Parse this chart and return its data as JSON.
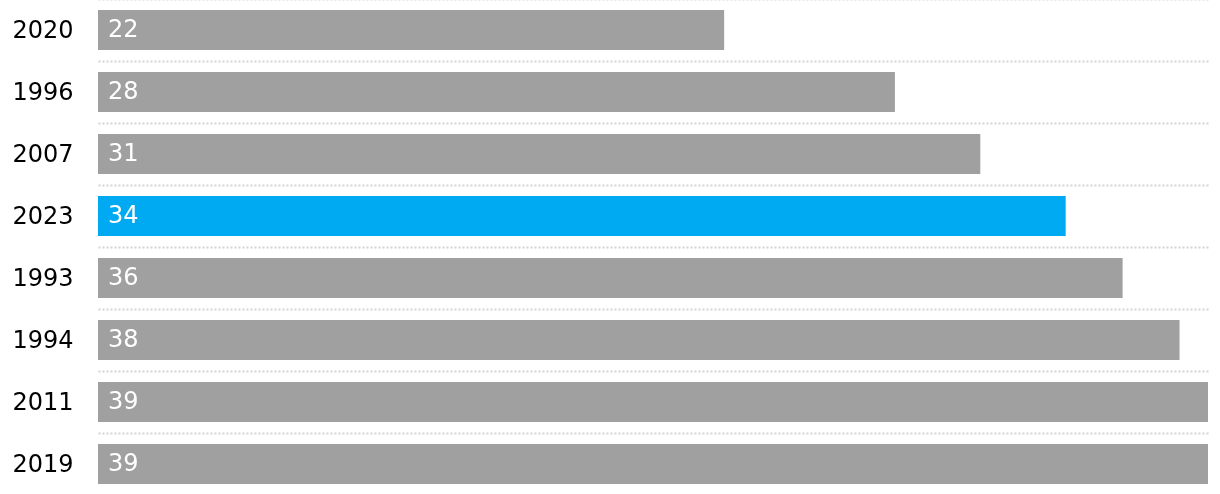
{
  "chart_data": {
    "type": "bar",
    "orientation": "horizontal",
    "categories": [
      "2020",
      "1996",
      "2007",
      "2023",
      "1993",
      "1994",
      "2011",
      "2019"
    ],
    "values": [
      22,
      28,
      31,
      34,
      36,
      38,
      39,
      39
    ],
    "colors": [
      "#a0a0a0",
      "#a0a0a0",
      "#a0a0a0",
      "#00aaf2",
      "#a0a0a0",
      "#a0a0a0",
      "#a0a0a0",
      "#a0a0a0"
    ],
    "xlim": [
      0,
      39
    ],
    "tick_labels": "y",
    "grid": "y",
    "data_labels": true
  }
}
